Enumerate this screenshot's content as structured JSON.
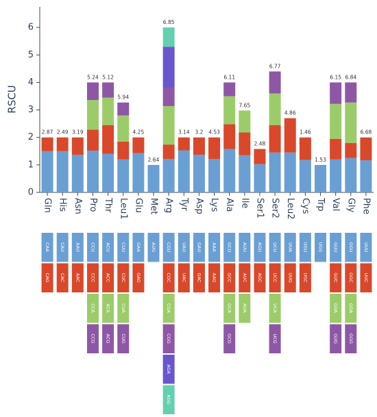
{
  "chart_data": {
    "type": "stacked_bar",
    "y_label": "RSCU",
    "categories": [
      "Gln",
      "His",
      "Asn",
      "Pro",
      "Thr",
      "Leu1",
      "Glu",
      "Met",
      "Arg",
      "Tyr",
      "Asp",
      "Lys",
      "Ala",
      "Ile",
      "Ser1",
      "Ser2",
      "Leu2",
      "Cys",
      "Trp",
      "Val",
      "Gly",
      "Phe"
    ],
    "annotations": [
      "2.87",
      "2.49",
      "3.19",
      "5.24",
      "5.12",
      "5.94",
      "4.25",
      "2.64",
      "6.85",
      "3.14",
      "3.2",
      "4.53",
      "6.11",
      "7.65",
      "2.48",
      "6.77",
      "4.86",
      "1.46",
      "1.53",
      "6.15",
      "6.84",
      "6.68"
    ],
    "series": [
      {
        "color": "#6a9fd4",
        "values": [
          1.5,
          1.5,
          1.37,
          1.52,
          1.4,
          1.2,
          1.43,
          1,
          1.22,
          1.53,
          1.37,
          1.22,
          1.58,
          1.35,
          1.03,
          1.45,
          1.45,
          1.18,
          1,
          1.2,
          1.25,
          1.17
        ],
        "labels": [
          "CAA",
          "CAU",
          "AAU",
          "CCU",
          "ACU",
          "CUU",
          "GAA",
          "AUG",
          "CGU",
          "UAU",
          "GAU",
          "AAA",
          "GCU",
          "AUU",
          "AGU",
          "UCU",
          "UUA",
          "UGU",
          "UGG",
          "GUU",
          "GGU",
          "UUU"
        ]
      },
      {
        "color": "#d9482b",
        "values": [
          0.5,
          0.5,
          0.63,
          0.76,
          1.05,
          0.65,
          0.57,
          null,
          0.52,
          0.47,
          0.63,
          0.78,
          0.9,
          0.83,
          0.55,
          1.0,
          1.25,
          0.82,
          null,
          0.75,
          0.55,
          0.83
        ],
        "labels": [
          "CAG",
          "CAC",
          "AAC",
          "CCC",
          "ACC",
          "CUC",
          "GAG",
          null,
          "CGC",
          "UAC",
          "GAC",
          "AAG",
          "GCC",
          "AUC",
          "AGC",
          "UCC",
          "UUG",
          "UGC",
          null,
          "GUC",
          "GGC",
          "UUC"
        ]
      },
      {
        "color": "#9ccc6a",
        "values": [
          null,
          null,
          null,
          1.08,
          1.0,
          0.95,
          null,
          null,
          1.4,
          null,
          null,
          null,
          1.02,
          0.8,
          null,
          1.15,
          null,
          null,
          null,
          1.27,
          1.47,
          null
        ],
        "labels": [
          null,
          null,
          null,
          "CCA",
          "ACA",
          "CUA",
          null,
          null,
          "CGA",
          null,
          null,
          null,
          "GCA",
          "AUA",
          null,
          "UCA",
          null,
          null,
          null,
          "GUA",
          "GGA",
          null
        ]
      },
      {
        "color": "#8e57a6",
        "values": [
          null,
          null,
          null,
          0.64,
          0.55,
          0.47,
          null,
          null,
          0.67,
          null,
          null,
          null,
          0.5,
          null,
          null,
          0.8,
          null,
          null,
          null,
          0.78,
          0.73,
          null
        ],
        "labels": [
          null,
          null,
          null,
          "CCG",
          "ACG",
          "CUG",
          null,
          null,
          "CGG",
          null,
          null,
          null,
          "GCG",
          null,
          null,
          "UCG",
          null,
          null,
          null,
          "GUG",
          "GGG",
          null
        ]
      },
      {
        "color": "#6a56cc",
        "values": [
          null,
          null,
          null,
          null,
          null,
          null,
          null,
          null,
          1.49,
          null,
          null,
          null,
          null,
          null,
          null,
          null,
          null,
          null,
          null,
          null,
          null,
          null
        ],
        "labels": [
          null,
          null,
          null,
          null,
          null,
          null,
          null,
          null,
          "AGA",
          null,
          null,
          null,
          null,
          null,
          null,
          null,
          null,
          null,
          null,
          null,
          null,
          null
        ]
      },
      {
        "color": "#64d0b0",
        "values": [
          null,
          null,
          null,
          null,
          null,
          null,
          null,
          null,
          0.7,
          null,
          null,
          null,
          null,
          null,
          null,
          null,
          null,
          null,
          null,
          null,
          null,
          null
        ],
        "labels": [
          null,
          null,
          null,
          null,
          null,
          null,
          null,
          null,
          "AGG",
          null,
          null,
          null,
          null,
          null,
          null,
          null,
          null,
          null,
          null,
          null,
          null,
          null
        ]
      }
    ],
    "ylim": [
      0,
      6.75
    ],
    "yticks": [
      0,
      1,
      2,
      3,
      4,
      5,
      6
    ]
  }
}
